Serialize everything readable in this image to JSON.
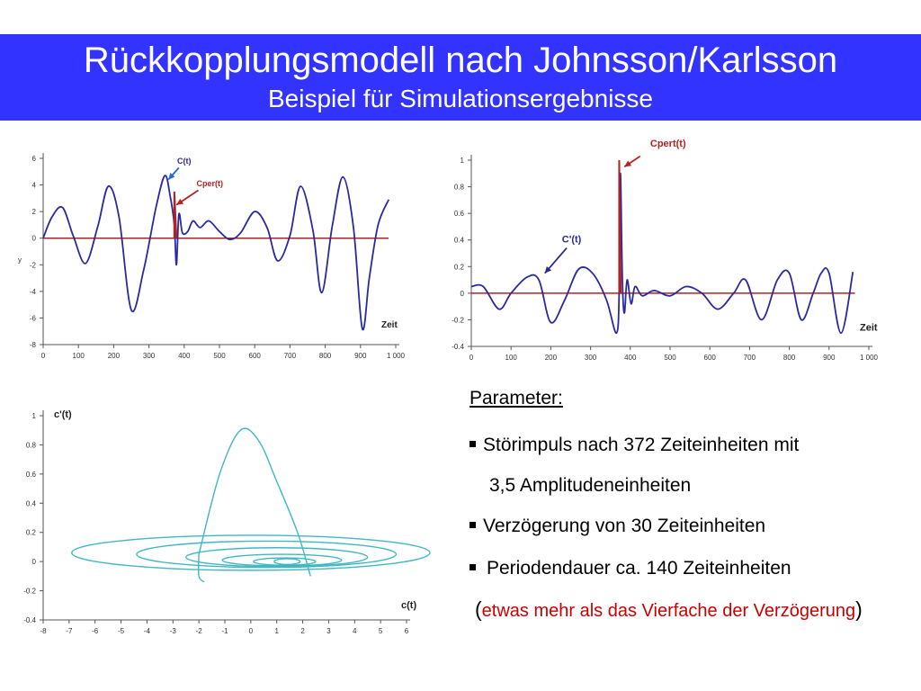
{
  "header": {
    "title": "Rückkopplungsmodell nach Johnsson/Karlsson",
    "subtitle": "Beispiel für Simulationsergebnisse"
  },
  "colors": {
    "header_bg": "#3333ff",
    "curve_blue": "#2a2aa0",
    "baseline_red": "#b22222",
    "phase_teal": "#3fb8c4",
    "note_red": "#cc0000"
  },
  "params": {
    "heading": "Parameter:",
    "item1_line1": "Störimpuls nach 372 Zeiteinheiten mit",
    "item1_line2": "3,5 Amplitudeneinheiten",
    "item2": "Verzögerung von 30 Zeiteinheiten",
    "item3": "Periodendauer ca. 140 Zeiteinheiten",
    "note_open": "(",
    "note": "etwas mehr als das Vierfache der Verzögerung",
    "note_close": ")"
  },
  "chart_data": [
    {
      "type": "line",
      "xlabel": "Zeit",
      "ylabel": "y",
      "xlim": [
        0,
        1000
      ],
      "ylim": [
        -8,
        6
      ],
      "x_ticks": [
        "0",
        "100",
        "200",
        "300",
        "400",
        "500",
        "600",
        "700",
        "800",
        "900",
        "1 000"
      ],
      "y_ticks": [
        "6",
        "4",
        "2",
        "0",
        "-2",
        "-4",
        "-6",
        "-8"
      ],
      "annotations": [
        "C(t)",
        "Cper(t)"
      ],
      "series": [
        {
          "name": "C(t)",
          "x": [
            0,
            25,
            55,
            85,
            120,
            155,
            185,
            215,
            250,
            285,
            320,
            345,
            360,
            372,
            378,
            385,
            395,
            410,
            425,
            445,
            470,
            500,
            530,
            560,
            600,
            635,
            665,
            700,
            730,
            765,
            790,
            820,
            850,
            880,
            905,
            925,
            950,
            980
          ],
          "y": [
            0,
            1.6,
            2.3,
            0.2,
            -1.9,
            0.9,
            3.9,
            1.6,
            -5.4,
            -2.4,
            2.3,
            4.7,
            3.2,
            1.0,
            -2.0,
            1.8,
            0.4,
            0.5,
            1.3,
            0.8,
            1.3,
            0.5,
            -0.1,
            0.4,
            2.0,
            0.8,
            -1.7,
            0.2,
            3.9,
            0.6,
            -4.1,
            0.9,
            4.6,
            0.8,
            -6.8,
            -3.0,
            1.0,
            2.9
          ]
        },
        {
          "name": "Cper(t)",
          "x": [
            372,
            372,
            378
          ],
          "y": [
            0,
            3.5,
            0
          ]
        }
      ]
    },
    {
      "type": "line",
      "xlabel": "Zeit",
      "xlim": [
        0,
        1000
      ],
      "ylim": [
        -0.4,
        1
      ],
      "x_ticks": [
        "0",
        "100",
        "200",
        "300",
        "400",
        "500",
        "600",
        "700",
        "800",
        "900",
        "1 000"
      ],
      "y_ticks": [
        "1",
        "0.8",
        "0.6",
        "0.4",
        "0.2",
        "0",
        "-0.2",
        "-0.4"
      ],
      "annotations": [
        "Cpert(t)",
        "C'(t)"
      ],
      "series": [
        {
          "name": "C'(t)",
          "x": [
            0,
            30,
            70,
            100,
            140,
            170,
            200,
            235,
            270,
            305,
            340,
            365,
            372,
            375,
            380,
            385,
            392,
            402,
            412,
            430,
            460,
            500,
            540,
            580,
            620,
            660,
            690,
            730,
            770,
            800,
            830,
            860,
            880,
            900,
            930,
            960
          ],
          "y": [
            0.05,
            0.05,
            -0.12,
            0.0,
            0.12,
            0.1,
            -0.22,
            -0.05,
            0.18,
            0.15,
            -0.05,
            -0.3,
            0.0,
            0.9,
            0.1,
            -0.15,
            0.1,
            -0.08,
            0.05,
            -0.02,
            0.02,
            -0.02,
            0.05,
            0.0,
            -0.12,
            0.0,
            0.1,
            -0.2,
            0.1,
            0.15,
            -0.2,
            0.0,
            0.15,
            0.15,
            -0.3,
            0.16
          ]
        },
        {
          "name": "Cpert(t)",
          "x": [
            372,
            372,
            376
          ],
          "y": [
            0,
            1.0,
            0
          ]
        }
      ]
    },
    {
      "type": "line",
      "xlabel": "c(t)",
      "ylabel": "c'(t)",
      "xlim": [
        -8,
        6
      ],
      "ylim": [
        -0.4,
        1
      ],
      "x_ticks": [
        "-8",
        "-7",
        "-6",
        "-5",
        "-4",
        "-3",
        "-2",
        "-1",
        "0",
        "1",
        "2",
        "3",
        "4",
        "5",
        "6"
      ],
      "y_ticks": [
        "1",
        "0.8",
        "0.6",
        "0.4",
        "0.2",
        "0",
        "-0.2",
        "-0.4"
      ],
      "series": [
        {
          "name": "phase",
          "x": [
            -2.0,
            -1.2,
            -0.4,
            0.3,
            1.0,
            1.8,
            2.3
          ],
          "y": [
            0.05,
            0.6,
            0.9,
            0.83,
            0.55,
            0.2,
            -0.1
          ]
        }
      ]
    }
  ]
}
